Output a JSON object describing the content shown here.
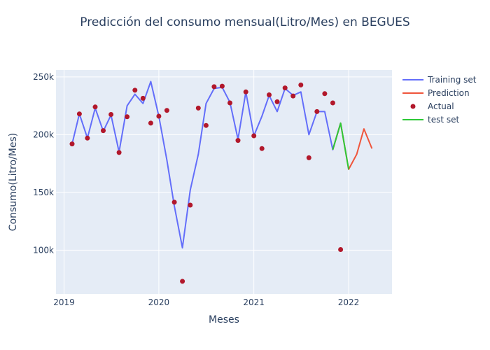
{
  "chart_data": {
    "type": "line",
    "title": "Predicción del consumo mensual(Litro/Mes) en BEGUES",
    "xlabel": "Meses",
    "ylabel": "Consumo(Litro/Mes)",
    "xlim": [
      "2018-12-01",
      "2022-06-17"
    ],
    "ylim": [
      62000,
      256000
    ],
    "x_ticks": [
      {
        "value": "2019-01-01",
        "label": "2019"
      },
      {
        "value": "2020-01-01",
        "label": "2020"
      },
      {
        "value": "2021-01-01",
        "label": "2021"
      },
      {
        "value": "2022-01-01",
        "label": "2022"
      }
    ],
    "y_ticks": [
      {
        "value": 100000,
        "label": "100k"
      },
      {
        "value": 150000,
        "label": "150k"
      },
      {
        "value": 200000,
        "label": "200k"
      },
      {
        "value": 250000,
        "label": "250k"
      }
    ],
    "grid": true,
    "legend_position": "top-right",
    "plot_bg": "#e5ecf6",
    "series": [
      {
        "name": "Training set",
        "kind": "line",
        "color": "#636efa",
        "points": [
          [
            "2019-02-01",
            192000
          ],
          [
            "2019-03-01",
            218000
          ],
          [
            "2019-04-01",
            197000
          ],
          [
            "2019-05-01",
            223000
          ],
          [
            "2019-06-01",
            203000
          ],
          [
            "2019-07-01",
            217000
          ],
          [
            "2019-08-01",
            185000
          ],
          [
            "2019-09-01",
            225000
          ],
          [
            "2019-10-01",
            235000
          ],
          [
            "2019-11-01",
            227000
          ],
          [
            "2019-12-01",
            246000
          ],
          [
            "2020-01-01",
            216000
          ],
          [
            "2020-02-01",
            178000
          ],
          [
            "2020-03-01",
            138000
          ],
          [
            "2020-04-01",
            102000
          ],
          [
            "2020-05-01",
            152000
          ],
          [
            "2020-06-01",
            183000
          ],
          [
            "2020-07-01",
            227000
          ],
          [
            "2020-08-01",
            240000
          ],
          [
            "2020-09-01",
            241000
          ],
          [
            "2020-10-01",
            228000
          ],
          [
            "2020-11-01",
            196000
          ],
          [
            "2020-12-01",
            237000
          ],
          [
            "2021-01-01",
            199000
          ],
          [
            "2021-02-01",
            216000
          ],
          [
            "2021-03-01",
            234000
          ],
          [
            "2021-04-01",
            220000
          ],
          [
            "2021-05-01",
            240000
          ],
          [
            "2021-06-01",
            234000
          ],
          [
            "2021-07-01",
            237000
          ],
          [
            "2021-08-01",
            200000
          ],
          [
            "2021-09-01",
            220000
          ],
          [
            "2021-10-01",
            220000
          ],
          [
            "2021-11-01",
            187000
          ],
          [
            "2021-12-01",
            210000
          ]
        ]
      },
      {
        "name": "Prediction",
        "kind": "line",
        "color": "#ef553b",
        "points": [
          [
            "2021-11-01",
            187000
          ],
          [
            "2021-12-01",
            210000
          ],
          [
            "2022-01-01",
            170000
          ],
          [
            "2022-02-01",
            183000
          ],
          [
            "2022-03-01",
            205000
          ],
          [
            "2022-04-01",
            188000
          ]
        ]
      },
      {
        "name": "Actual",
        "kind": "markers",
        "color": "#b2182b",
        "points": [
          [
            "2019-02-01",
            192000
          ],
          [
            "2019-03-01",
            218000
          ],
          [
            "2019-04-01",
            197000
          ],
          [
            "2019-05-01",
            224000
          ],
          [
            "2019-06-01",
            203500
          ],
          [
            "2019-07-01",
            217500
          ],
          [
            "2019-08-01",
            184500
          ],
          [
            "2019-09-01",
            215500
          ],
          [
            "2019-10-01",
            238500
          ],
          [
            "2019-11-01",
            231500
          ],
          [
            "2019-12-01",
            210000
          ],
          [
            "2020-01-01",
            216000
          ],
          [
            "2020-02-01",
            221000
          ],
          [
            "2020-03-01",
            141500
          ],
          [
            "2020-04-01",
            73000
          ],
          [
            "2020-05-01",
            139000
          ],
          [
            "2020-06-01",
            223000
          ],
          [
            "2020-07-01",
            208000
          ],
          [
            "2020-08-01",
            241500
          ],
          [
            "2020-09-01",
            242000
          ],
          [
            "2020-10-01",
            227500
          ],
          [
            "2020-11-01",
            195000
          ],
          [
            "2020-12-01",
            237000
          ],
          [
            "2021-01-01",
            199000
          ],
          [
            "2021-02-01",
            188000
          ],
          [
            "2021-03-01",
            234500
          ],
          [
            "2021-04-01",
            228500
          ],
          [
            "2021-05-01",
            240500
          ],
          [
            "2021-06-01",
            233500
          ],
          [
            "2021-07-01",
            243000
          ],
          [
            "2021-08-01",
            180000
          ],
          [
            "2021-09-01",
            220000
          ],
          [
            "2021-10-01",
            235500
          ],
          [
            "2021-11-01",
            227500
          ],
          [
            "2021-12-01",
            100500
          ]
        ]
      },
      {
        "name": "test set",
        "kind": "line",
        "color": "#2dc937",
        "points": [
          [
            "2021-11-01",
            187000
          ],
          [
            "2021-12-01",
            210000
          ],
          [
            "2022-01-01",
            170000
          ]
        ]
      }
    ]
  }
}
